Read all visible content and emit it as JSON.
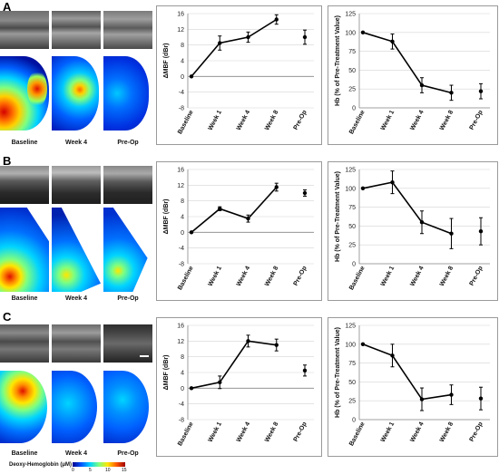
{
  "panels": [
    {
      "letter": "A",
      "image_captions": [
        "Baseline",
        "Week 4",
        "Pre-Op"
      ]
    },
    {
      "letter": "B",
      "image_captions": [
        "Baseline",
        "Week 4",
        "Pre-Op"
      ]
    },
    {
      "letter": "C",
      "image_captions": [
        "Baseline",
        "Week 4",
        "Pre-Op"
      ]
    }
  ],
  "colorbar": {
    "title": "Deoxy-Hemoglobin (μM)",
    "ticks": [
      "0",
      "5",
      "10",
      "15"
    ],
    "colors": [
      "#00008f",
      "#0055ff",
      "#00d4ff",
      "#7fff7f",
      "#ffe600",
      "#ff5a00",
      "#a00000"
    ]
  },
  "colors": {
    "line": "#000000",
    "frame": "#9a9a9a",
    "grid": "#d4d4d4"
  },
  "chart_data": [
    {
      "id": "A-mbf",
      "type": "line",
      "xlabel": "",
      "ylabel": "ΔMBF (dBr)",
      "ylim": [
        -8,
        16
      ],
      "yticks": [
        -8,
        -4,
        0,
        4,
        8,
        12,
        16
      ],
      "categories": [
        "Baseline",
        "Week 1",
        "Week 4",
        "Week 8",
        "Pre-Op"
      ],
      "values": [
        0,
        8.5,
        10,
        14.5,
        10
      ],
      "errors": [
        0,
        1.8,
        1.3,
        1.2,
        1.8
      ],
      "connected_count": 4
    },
    {
      "id": "A-hb",
      "type": "line",
      "xlabel": "",
      "ylabel": "Hb (% of Pre-Treatment Value)",
      "ylim": [
        0,
        125
      ],
      "yticks": [
        0,
        25,
        50,
        75,
        100,
        125
      ],
      "categories": [
        "Baseline",
        "Week 1",
        "Week 4",
        "Week 8",
        "Pre-Op"
      ],
      "values": [
        100,
        88,
        30,
        20,
        22
      ],
      "errors": [
        0,
        10,
        10,
        10,
        10
      ],
      "connected_count": 4
    },
    {
      "id": "B-mbf",
      "type": "line",
      "xlabel": "",
      "ylabel": "ΔMBF (dBr)",
      "ylim": [
        -8,
        16
      ],
      "yticks": [
        -8,
        -4,
        0,
        4,
        8,
        12,
        16
      ],
      "categories": [
        "Baseline",
        "Week 1",
        "Week 4",
        "Week 8",
        "Pre-Op"
      ],
      "values": [
        0,
        6,
        3.5,
        11.5,
        10
      ],
      "errors": [
        0,
        0.5,
        0.9,
        1,
        0.8
      ],
      "connected_count": 4
    },
    {
      "id": "B-hb",
      "type": "line",
      "xlabel": "",
      "ylabel": "Hb (% of Pre-Treatment Value)",
      "ylim": [
        0,
        125
      ],
      "yticks": [
        0,
        25,
        50,
        75,
        100,
        125
      ],
      "categories": [
        "Baseline",
        "Week 1",
        "Week 4",
        "Week 8",
        "Pre-Op"
      ],
      "values": [
        100,
        108,
        55,
        40,
        43
      ],
      "errors": [
        0,
        15,
        15,
        20,
        18
      ],
      "connected_count": 4
    },
    {
      "id": "C-mbf",
      "type": "line",
      "xlabel": "",
      "ylabel": "ΔMBF (dBr)",
      "ylim": [
        -8,
        16
      ],
      "yticks": [
        -8,
        -4,
        0,
        4,
        8,
        12,
        16
      ],
      "categories": [
        "Baseline",
        "Week 1",
        "Week 4",
        "Week 8",
        "Pre-Op"
      ],
      "values": [
        0,
        1.5,
        12,
        11,
        4.5
      ],
      "errors": [
        0,
        1.6,
        1.5,
        1.5,
        1.4
      ],
      "connected_count": 4
    },
    {
      "id": "C-hb",
      "type": "line",
      "xlabel": "",
      "ylabel": "Hb (% of Pre-Treatment Value)",
      "ylim": [
        0,
        125
      ],
      "yticks": [
        0,
        25,
        50,
        75,
        100,
        125
      ],
      "categories": [
        "Baseline",
        "Week 1",
        "Week 4",
        "Week 8",
        "Pre-Op"
      ],
      "values": [
        100,
        85,
        27,
        33,
        28
      ],
      "errors": [
        0,
        15,
        15,
        13,
        15
      ],
      "connected_count": 4
    }
  ]
}
